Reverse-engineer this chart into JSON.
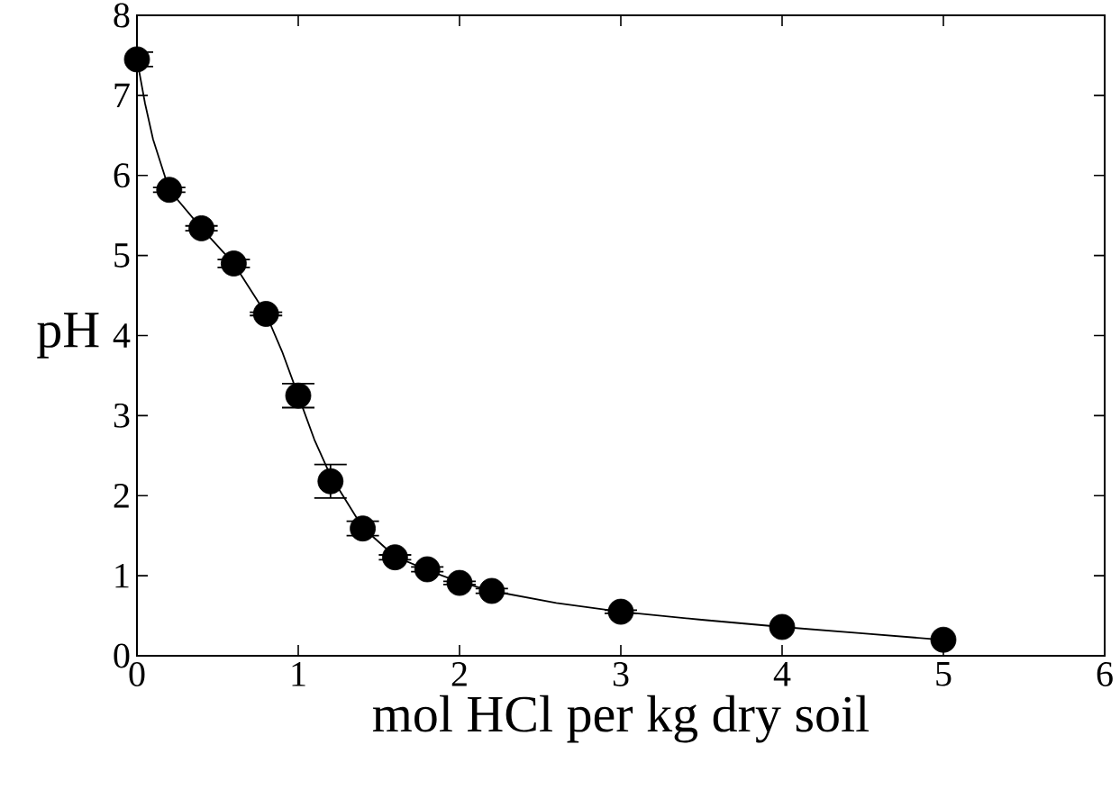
{
  "chart_data": {
    "type": "scatter",
    "xlabel": "mol HCl per kg dry soil",
    "ylabel": "pH",
    "xlim": [
      0,
      6
    ],
    "ylim": [
      0,
      8
    ],
    "xticks": [
      0,
      1,
      2,
      3,
      4,
      5,
      6
    ],
    "yticks": [
      0,
      1,
      2,
      3,
      4,
      5,
      6,
      7,
      8
    ],
    "series": [
      {
        "color": "#000000",
        "marker": "circle",
        "x": [
          0,
          0.2,
          0.4,
          0.6,
          0.8,
          1.0,
          1.2,
          1.4,
          1.6,
          1.8,
          2.0,
          2.2,
          3.0,
          4.0,
          5.0
        ],
        "values": [
          7.45,
          5.82,
          5.34,
          4.9,
          4.27,
          3.25,
          2.18,
          1.59,
          1.23,
          1.08,
          0.91,
          0.81,
          0.55,
          0.36,
          0.2
        ],
        "errors": [
          0.09,
          0.03,
          0.03,
          0.05,
          0.02,
          0.15,
          0.21,
          0.09,
          0.03,
          0.03,
          0.02,
          0.03,
          0.02,
          null,
          null
        ]
      },
      {
        "type": "line",
        "color": "#000000",
        "marker": "none",
        "line_style": "solid",
        "x": [
          0,
          0.05,
          0.1,
          0.2,
          0.4,
          0.6,
          0.8,
          0.9,
          1.0,
          1.1,
          1.2,
          1.4,
          1.6,
          1.8,
          2.0,
          2.2,
          2.6,
          3.0,
          3.5,
          4.0,
          4.5,
          5.05
        ],
        "values": [
          7.45,
          6.9,
          6.45,
          5.82,
          5.34,
          4.9,
          4.27,
          3.8,
          3.25,
          2.7,
          2.25,
          1.6,
          1.24,
          1.07,
          0.92,
          0.81,
          0.66,
          0.55,
          0.45,
          0.36,
          0.28,
          0.19
        ]
      }
    ]
  }
}
